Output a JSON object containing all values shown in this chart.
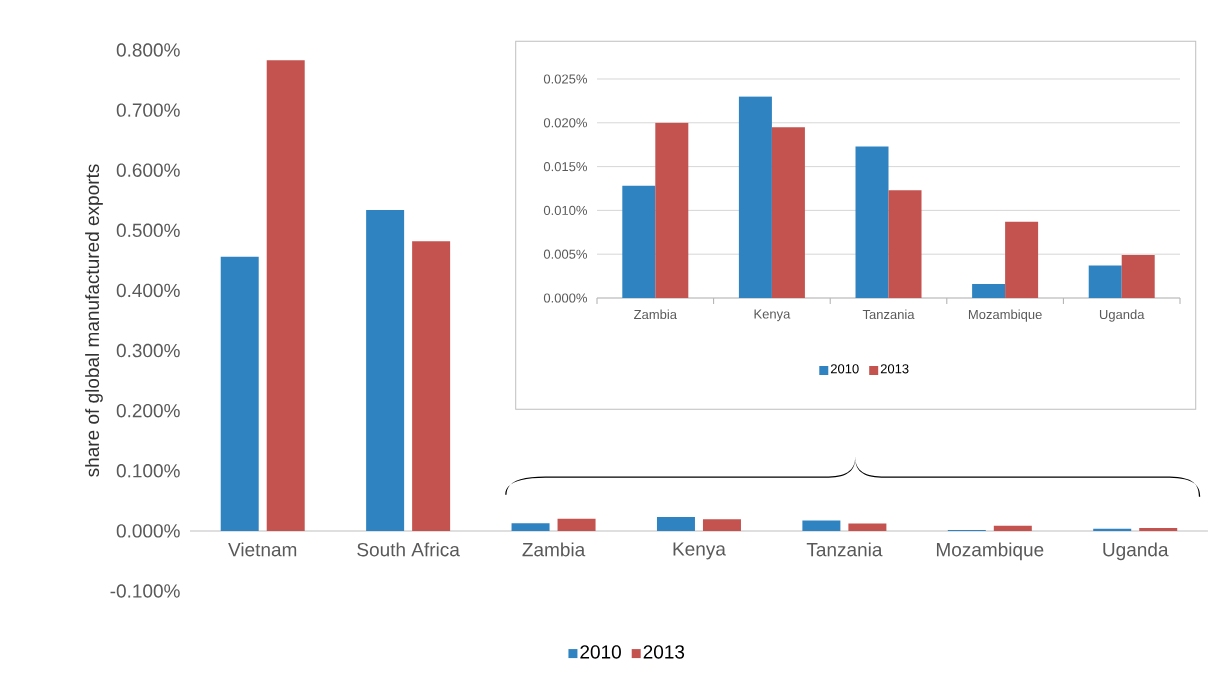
{
  "chart_data": [
    {
      "type": "bar",
      "ylabel": "share of global manufactured exports",
      "categories": [
        "Vietnam",
        "South Africa",
        "Zambia",
        "Kenya",
        "Tanzania",
        "Mozambique",
        "Uganda"
      ],
      "series": [
        {
          "name": "2010",
          "color": "#2f83c1",
          "values": [
            0.456,
            0.534,
            0.0128,
            0.023,
            0.0173,
            0.0016,
            0.0037
          ]
        },
        {
          "name": "2013",
          "color": "#c4524f",
          "values": [
            0.783,
            0.482,
            0.02,
            0.0195,
            0.0123,
            0.0087,
            0.0049
          ]
        }
      ],
      "ylim": [
        -0.1,
        0.8
      ],
      "yticks": [
        {
          "value": -0.1,
          "label": "-0.100%"
        },
        {
          "value": 0,
          "label": "0.000%"
        },
        {
          "value": 0.1,
          "label": "0.100%"
        },
        {
          "value": 0.2,
          "label": "0.200%"
        },
        {
          "value": 0.3,
          "label": "0.300%"
        },
        {
          "value": 0.4,
          "label": "0.400%"
        },
        {
          "value": 0.5,
          "label": "0.500%"
        },
        {
          "value": 0.6,
          "label": "0.600%"
        },
        {
          "value": 0.7,
          "label": "0.700%"
        },
        {
          "value": 0.8,
          "label": "0.800%"
        }
      ],
      "legend": "bottom"
    },
    {
      "type": "bar",
      "categories": [
        "Zambia",
        "Kenya",
        "Tanzania",
        "Mozambique",
        "Uganda"
      ],
      "series": [
        {
          "name": "2010",
          "color": "#2f83c1",
          "values": [
            0.0128,
            0.023,
            0.0173,
            0.0016,
            0.0037
          ]
        },
        {
          "name": "2013",
          "color": "#c4524f",
          "values": [
            0.02,
            0.0195,
            0.0123,
            0.0087,
            0.0049
          ]
        }
      ],
      "ylim": [
        0,
        0.025
      ],
      "yticks": [
        {
          "value": 0,
          "label": "0.000%"
        },
        {
          "value": 0.005,
          "label": "0.005%"
        },
        {
          "value": 0.01,
          "label": "0.010%"
        },
        {
          "value": 0.015,
          "label": "0.015%"
        },
        {
          "value": 0.02,
          "label": "0.020%"
        },
        {
          "value": 0.025,
          "label": "0.025%"
        }
      ],
      "grid": "y",
      "legend": "bottom"
    }
  ]
}
